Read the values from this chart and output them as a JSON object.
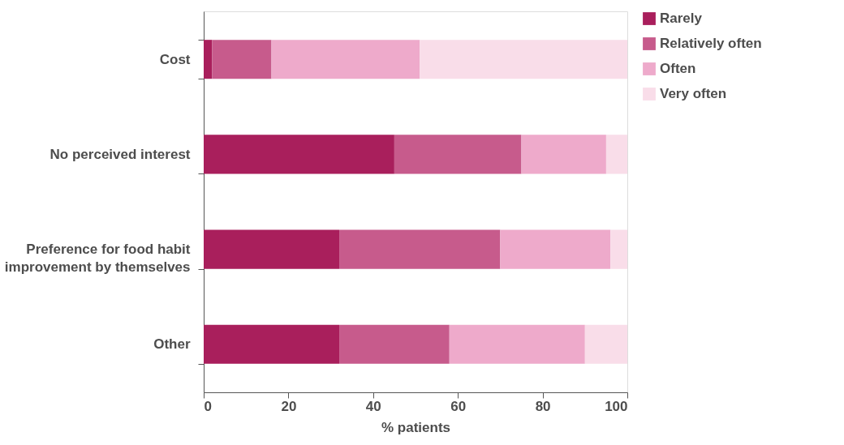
{
  "chart_data": {
    "type": "bar",
    "orientation": "horizontal",
    "stacked": true,
    "categories": [
      "Cost",
      "No perceived interest",
      "Preference for food habit improvement by themselves",
      "Other"
    ],
    "series": [
      {
        "name": "Rarely",
        "color": "#a91f5c",
        "values": [
          2,
          45,
          32,
          32
        ]
      },
      {
        "name": "Relatively often",
        "color": "#c75b8c",
        "values": [
          14,
          30,
          38,
          26
        ]
      },
      {
        "name": "Often",
        "color": "#eeaacb",
        "values": [
          35,
          20,
          26,
          32
        ]
      },
      {
        "name": "Very often",
        "color": "#f9dde9",
        "values": [
          49,
          5,
          4,
          10
        ]
      }
    ],
    "xlabel": "% patients",
    "xlim": [
      0,
      100
    ],
    "xticks": [
      0,
      20,
      40,
      60,
      80,
      100
    ],
    "grid": false,
    "legend": "right"
  }
}
